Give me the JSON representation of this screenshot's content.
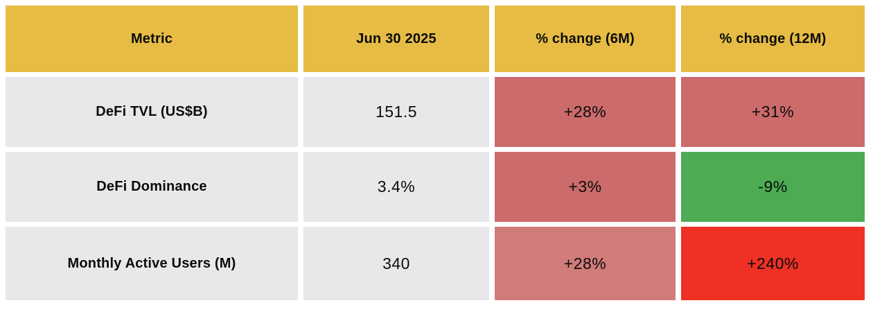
{
  "colors": {
    "header_bg": "#E6BC44",
    "neutral_bg": "#E8E8EA",
    "salmon": "#CC6B6B",
    "salmon_light": "#D07C7A",
    "bright_red": "#EE3124",
    "green": "#4CAB53",
    "text": "#0B0B0B"
  },
  "table": {
    "headers": {
      "metric": "Metric",
      "date": "Jun 30 2025",
      "change_6m": "% change (6M)",
      "change_12m": "% change (12M)"
    },
    "rows": [
      {
        "metric": "DeFi TVL (US$B)",
        "value": "151.5",
        "change_6m": {
          "label": "+28%",
          "bg": "#CC6B6B"
        },
        "change_12m": {
          "label": "+31%",
          "bg": "#CC6B6B"
        }
      },
      {
        "metric": "DeFi Dominance",
        "value": "3.4%",
        "change_6m": {
          "label": "+3%",
          "bg": "#CC6B6B"
        },
        "change_12m": {
          "label": "-9%",
          "bg": "#4CAB53"
        }
      },
      {
        "metric": "Monthly Active Users (M)",
        "value": "340",
        "change_6m": {
          "label": "+28%",
          "bg": "#D07C7A"
        },
        "change_12m": {
          "label": "+240%",
          "bg": "#EE3124"
        }
      }
    ]
  },
  "chart_data": {
    "type": "table",
    "title": "",
    "columns": [
      "Metric",
      "Jun 30 2025",
      "% change (6M)",
      "% change (12M)"
    ],
    "rows": [
      [
        "DeFi TVL (US$B)",
        "151.5",
        "+28%",
        "+31%"
      ],
      [
        "DeFi Dominance",
        "3.4%",
        "+3%",
        "-9%"
      ],
      [
        "Monthly Active Users (M)",
        "340",
        "+28%",
        "+240%"
      ]
    ],
    "cell_color_semantics": {
      "+28% (6M, DeFi TVL)": "salmon",
      "+31% (12M, DeFi TVL)": "salmon",
      "+3% (6M, DeFi Dominance)": "salmon",
      "-9% (12M, DeFi Dominance)": "green",
      "+28% (6M, Monthly Active Users)": "salmon_light",
      "+240% (12M, Monthly Active Users)": "bright_red"
    }
  }
}
